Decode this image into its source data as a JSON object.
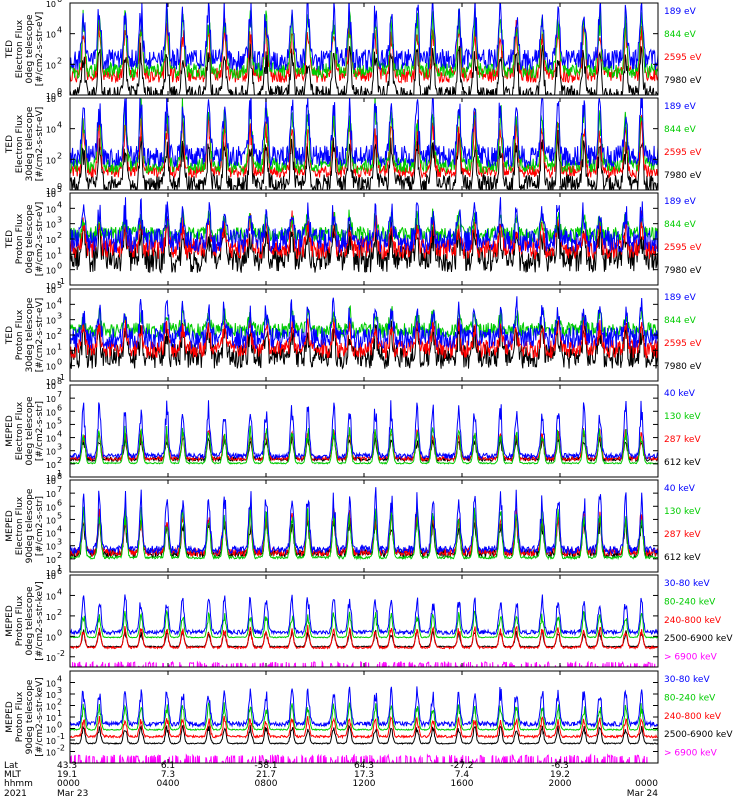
{
  "chart_data": {
    "type": "line",
    "x_axis": {
      "rows": [
        {
          "label": "Lat",
          "values": [
            "43.3",
            "6.1",
            "-58.1",
            "64.3",
            "-27.2",
            "-6.3"
          ]
        },
        {
          "label": "MLT",
          "values": [
            "19.1",
            "7.3",
            "21.7",
            "17.3",
            "7.4",
            "19.2"
          ]
        },
        {
          "label": "hhmm",
          "values": [
            "0000",
            "0400",
            "0800",
            "1200",
            "1600",
            "2000",
            "0000"
          ]
        },
        {
          "label": "2021",
          "values": [
            "Mar 23",
            "",
            "",
            "",
            "",
            "",
            "Mar 24"
          ]
        }
      ],
      "xlim_hours": [
        0,
        24
      ],
      "tick_hours": [
        0,
        4,
        8,
        12,
        16,
        20,
        24
      ]
    },
    "panels": [
      {
        "ylabel": [
          "TED",
          "Electron Flux",
          "0deg telescope",
          "[#/cm2-s-str-eV]"
        ],
        "ylim_log10": [
          0,
          6
        ],
        "ticks": [
          {
            "b": "10",
            "e": "0"
          },
          {
            "b": "10",
            "e": "2"
          },
          {
            "b": "10",
            "e": "4"
          },
          {
            "b": "10",
            "e": "6"
          }
        ],
        "series": [
          {
            "name": "7980 eV",
            "color": "#000000",
            "base_log": 0.1,
            "spread": 0.5,
            "peak": 2.6
          },
          {
            "name": "2595 eV",
            "color": "#ff0000",
            "base_log": 1.3,
            "spread": 0.5,
            "peak": 2.9
          },
          {
            "name": "844 eV",
            "color": "#00cc00",
            "base_log": 1.6,
            "spread": 0.5,
            "peak": 3.4
          },
          {
            "name": "189 eV",
            "color": "#0000ff",
            "base_log": 2.3,
            "spread": 0.7,
            "peak": 3.3
          }
        ]
      },
      {
        "ylabel": [
          "TED",
          "Electron Flux",
          "30deg telescope",
          "[#/cm2-s-str-eV]"
        ],
        "ylim_log10": [
          0,
          6
        ],
        "ticks": [
          {
            "b": "10",
            "e": "0"
          },
          {
            "b": "10",
            "e": "2"
          },
          {
            "b": "10",
            "e": "4"
          },
          {
            "b": "10",
            "e": "6"
          }
        ],
        "series": [
          {
            "name": "7980 eV",
            "color": "#000000",
            "base_log": 0.4,
            "spread": 0.6,
            "peak": 2.6
          },
          {
            "name": "2595 eV",
            "color": "#ff0000",
            "base_log": 1.2,
            "spread": 0.4,
            "peak": 3.0
          },
          {
            "name": "844 eV",
            "color": "#00cc00",
            "base_log": 1.6,
            "spread": 0.5,
            "peak": 3.6
          },
          {
            "name": "189 eV",
            "color": "#0000ff",
            "base_log": 2.2,
            "spread": 0.7,
            "peak": 3.4
          }
        ]
      },
      {
        "ylabel": [
          "TED",
          "Proton Flux",
          "0deg telescope",
          "[#/cm2-s-str-eV]"
        ],
        "ylim_log10": [
          -1,
          5
        ],
        "ticks": [
          {
            "b": "10",
            "e": "-1"
          },
          {
            "b": "10",
            "e": "0"
          },
          {
            "b": "10",
            "e": "1"
          },
          {
            "b": "10",
            "e": "2"
          },
          {
            "b": "10",
            "e": "3"
          },
          {
            "b": "10",
            "e": "4"
          },
          {
            "b": "10",
            "e": "5"
          }
        ],
        "series": [
          {
            "name": "7980 eV",
            "color": "#000000",
            "base_log": 0.7,
            "spread": 0.9,
            "peak": 1.8
          },
          {
            "name": "2595 eV",
            "color": "#ff0000",
            "base_log": 1.4,
            "spread": 0.7,
            "peak": 1.6
          },
          {
            "name": "844 eV",
            "color": "#00cc00",
            "base_log": 2.3,
            "spread": 0.5,
            "peak": 1.2
          },
          {
            "name": "189 eV",
            "color": "#0000ff",
            "base_log": 1.9,
            "spread": 0.8,
            "peak": 1.9
          }
        ]
      },
      {
        "ylabel": [
          "TED",
          "Proton Flux",
          "30deg telescope",
          "[#/cm2-s-str-eV]"
        ],
        "ylim_log10": [
          -1,
          5
        ],
        "ticks": [
          {
            "b": "10",
            "e": "-1"
          },
          {
            "b": "10",
            "e": "0"
          },
          {
            "b": "10",
            "e": "1"
          },
          {
            "b": "10",
            "e": "2"
          },
          {
            "b": "10",
            "e": "3"
          },
          {
            "b": "10",
            "e": "4"
          },
          {
            "b": "10",
            "e": "5"
          }
        ],
        "series": [
          {
            "name": "7980 eV",
            "color": "#000000",
            "base_log": 0.6,
            "spread": 0.8,
            "peak": 1.7
          },
          {
            "name": "2595 eV",
            "color": "#ff0000",
            "base_log": 1.1,
            "spread": 0.6,
            "peak": 1.6
          },
          {
            "name": "844 eV",
            "color": "#00cc00",
            "base_log": 2.3,
            "spread": 0.5,
            "peak": 1.1
          },
          {
            "name": "189 eV",
            "color": "#0000ff",
            "base_log": 1.8,
            "spread": 0.7,
            "peak": 1.9
          }
        ]
      },
      {
        "ylabel": [
          "MEPED",
          "Electron Flux",
          "0deg telescope",
          "[#/cm2-s-str]"
        ],
        "ylim_log10": [
          1,
          8
        ],
        "ticks": [
          {
            "b": "10",
            "e": "1"
          },
          {
            "b": "10",
            "e": "2"
          },
          {
            "b": "10",
            "e": "3"
          },
          {
            "b": "10",
            "e": "4"
          },
          {
            "b": "10",
            "e": "5"
          },
          {
            "b": "10",
            "e": "6"
          },
          {
            "b": "10",
            "e": "7"
          },
          {
            "b": "10",
            "e": "8"
          }
        ],
        "series": [
          {
            "name": "612 keV",
            "color": "#000000",
            "base_log": 2.35,
            "spread": 0.15,
            "peak": 1.5
          },
          {
            "name": "287 keV",
            "color": "#ff0000",
            "base_log": 2.4,
            "spread": 0.15,
            "peak": 1.9
          },
          {
            "name": "130 keV",
            "color": "#00cc00",
            "base_log": 2.05,
            "spread": 0.05,
            "peak": 2.4
          },
          {
            "name": "40 keV",
            "color": "#0000ff",
            "base_log": 2.6,
            "spread": 0.2,
            "peak": 3.6
          }
        ]
      },
      {
        "ylabel": [
          "MEPED",
          "Electron Flux",
          "90deg telescope",
          "[#/cm2-s-str]"
        ],
        "ylim_log10": [
          1,
          8
        ],
        "ticks": [
          {
            "b": "10",
            "e": "1"
          },
          {
            "b": "10",
            "e": "2"
          },
          {
            "b": "10",
            "e": "3"
          },
          {
            "b": "10",
            "e": "4"
          },
          {
            "b": "10",
            "e": "5"
          },
          {
            "b": "10",
            "e": "6"
          },
          {
            "b": "10",
            "e": "7"
          },
          {
            "b": "10",
            "e": "8"
          }
        ],
        "series": [
          {
            "name": "612 keV",
            "color": "#000000",
            "base_log": 2.4,
            "spread": 0.3,
            "peak": 2.4
          },
          {
            "name": "287 keV",
            "color": "#ff0000",
            "base_log": 2.5,
            "spread": 0.3,
            "peak": 2.8
          },
          {
            "name": "130 keV",
            "color": "#00cc00",
            "base_log": 2.1,
            "spread": 0.1,
            "peak": 3.3
          },
          {
            "name": "40 keV",
            "color": "#0000ff",
            "base_log": 2.7,
            "spread": 0.3,
            "peak": 4.0
          }
        ]
      },
      {
        "ylabel": [
          "MEPED",
          "Proton Flux",
          "0deg telescope",
          "[#/cm2-s-str-keV]"
        ],
        "ylim_log10": [
          -3,
          6
        ],
        "ticks": [
          {
            "b": "10",
            "e": "-2"
          },
          {
            "b": "10",
            "e": "0"
          },
          {
            "b": "10",
            "e": "2"
          },
          {
            "b": "10",
            "e": "4"
          },
          {
            "b": "10",
            "e": "6"
          }
        ],
        "series": [
          {
            "name": "> 6900 keV",
            "color": "#ff00ff",
            "base_log": -2.6,
            "spread": 0.1,
            "peak": 1.2,
            "dip": true
          },
          {
            "name": "2500-6900 keV",
            "color": "#000000",
            "base_log": -1.0,
            "spread": 0.05,
            "peak": 1.4
          },
          {
            "name": "240-800 keV",
            "color": "#ff0000",
            "base_log": -1.1,
            "spread": 0.1,
            "peak": 1.8
          },
          {
            "name": "80-240 keV",
            "color": "#00cc00",
            "base_log": -0.1,
            "spread": 0.05,
            "peak": 2.2
          },
          {
            "name": "30-80 keV",
            "color": "#0000ff",
            "base_log": 0.4,
            "spread": 0.2,
            "peak": 3.2
          }
        ]
      },
      {
        "ylabel": [
          "MEPED",
          "Proton Flux",
          "90deg telescope",
          "[#/cm2-s-str-keV]"
        ],
        "ylim_log10": [
          -3,
          5
        ],
        "ticks": [
          {
            "b": "10",
            "e": "-2"
          },
          {
            "b": "10",
            "e": "-1"
          },
          {
            "b": "10",
            "e": "0"
          },
          {
            "b": "10",
            "e": "1"
          },
          {
            "b": "10",
            "e": "2"
          },
          {
            "b": "10",
            "e": "3"
          },
          {
            "b": "10",
            "e": "4"
          }
        ],
        "series": [
          {
            "name": "> 6900 keV",
            "color": "#ff00ff",
            "base_log": -2.4,
            "spread": 0.1,
            "peak": 1.0,
            "dip": true
          },
          {
            "name": "2500-6900 keV",
            "color": "#000000",
            "base_log": -1.3,
            "spread": 0.05,
            "peak": 1.4
          },
          {
            "name": "240-800 keV",
            "color": "#ff0000",
            "base_log": -0.7,
            "spread": 0.1,
            "peak": 1.5
          },
          {
            "name": "80-240 keV",
            "color": "#00cc00",
            "base_log": -0.1,
            "spread": 0.05,
            "peak": 2.0
          },
          {
            "name": "30-80 keV",
            "color": "#0000ff",
            "base_log": 0.4,
            "spread": 0.2,
            "peak": 2.8
          }
        ]
      }
    ]
  }
}
